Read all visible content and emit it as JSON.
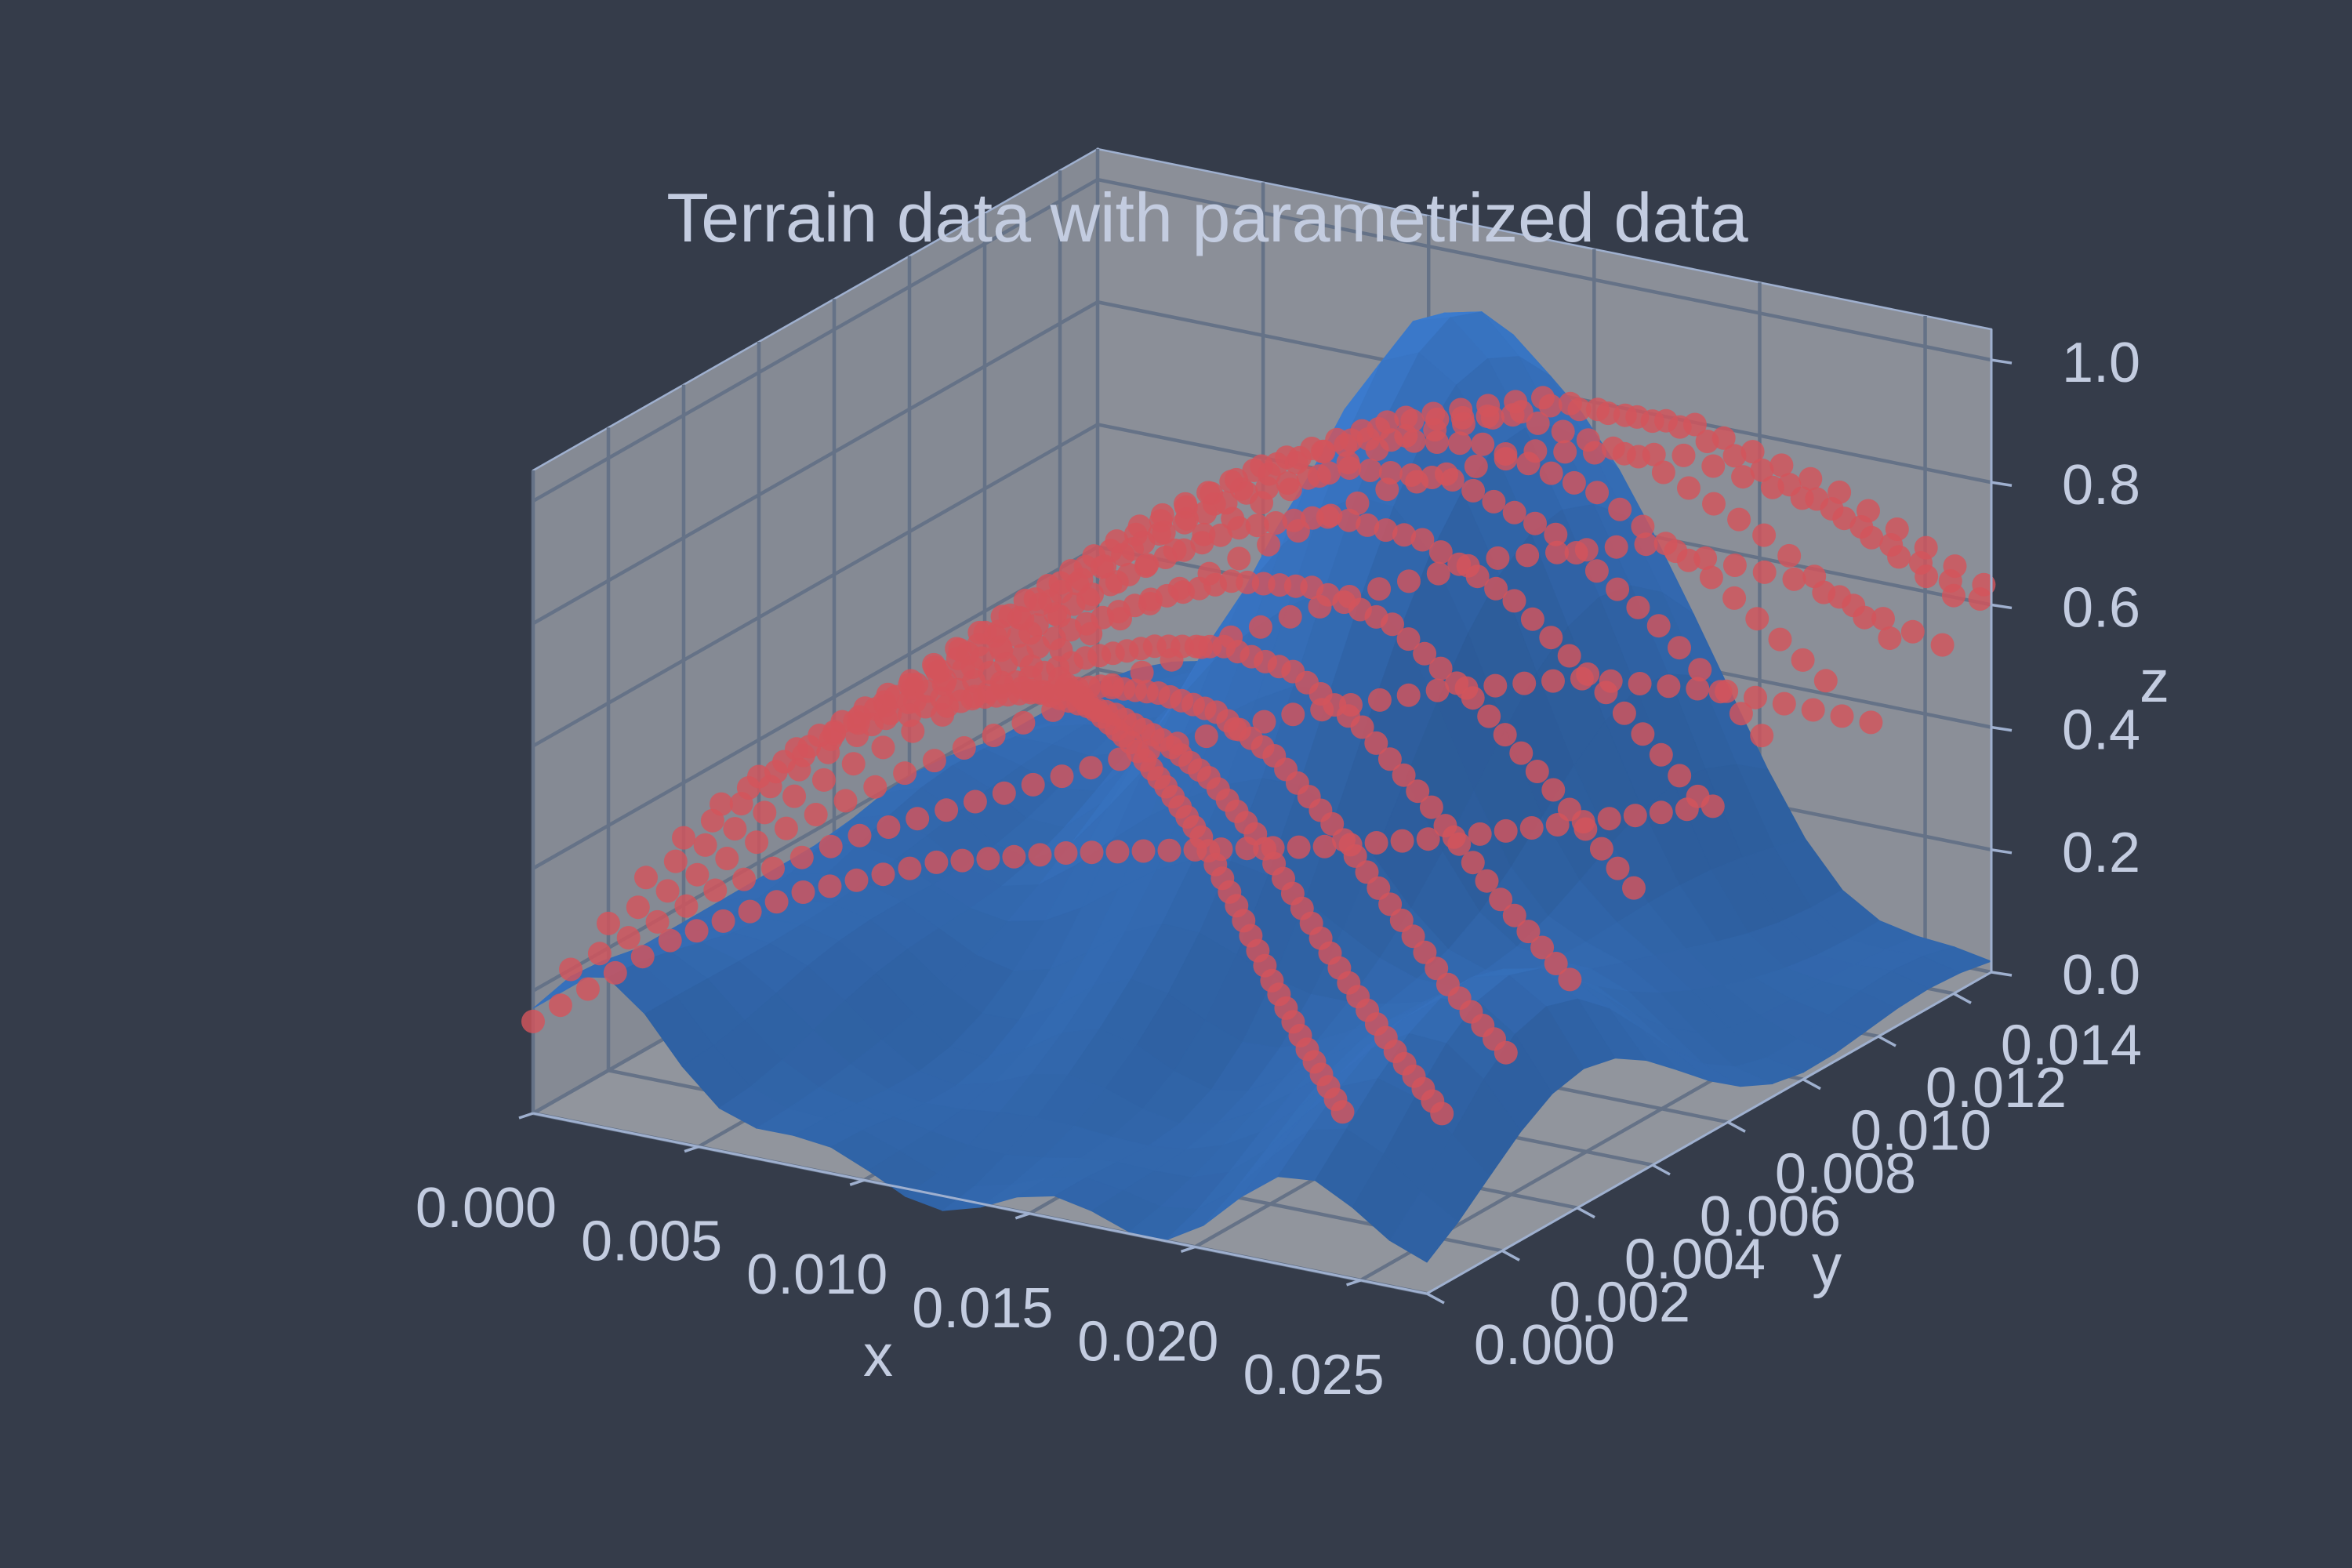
{
  "chart_data": {
    "type": "surface3d+scatter3d",
    "title": "Terrain data with parametrized data",
    "xlabel": "x",
    "ylabel": "y",
    "zlabel": "z",
    "xlim": [
      0.0,
      0.027
    ],
    "ylim": [
      0.0,
      0.015
    ],
    "zlim": [
      0.0,
      1.05
    ],
    "x_ticks": [
      "0.000",
      "0.005",
      "0.010",
      "0.015",
      "0.020",
      "0.025"
    ],
    "y_ticks": [
      "0.000",
      "0.002",
      "0.004",
      "0.006",
      "0.008",
      "0.010",
      "0.012",
      "0.014"
    ],
    "z_ticks": [
      "0.0",
      "0.2",
      "0.4",
      "0.6",
      "0.8",
      "1.0"
    ],
    "grid": true,
    "colors": {
      "background": "#353c4a",
      "surface": "#3a78c9",
      "points": "#d3545c",
      "text": "#c3cce0",
      "grid": "#657287"
    },
    "surface": {
      "x_range": [
        0.0,
        0.027
      ],
      "y_range": [
        0.0,
        0.015
      ],
      "grid_size": [
        24,
        18
      ],
      "peak_value": 1.0,
      "peak_location": [
        0.0135,
        0.0125
      ]
    },
    "series": [
      {
        "points": [
          [
            0.0,
            0.0,
            0.15
          ],
          [
            0.003,
            0.001,
            0.28
          ],
          [
            0.006,
            0.0019,
            0.36
          ],
          [
            0.009,
            0.0028,
            0.41
          ],
          [
            0.012,
            0.0036,
            0.43
          ],
          [
            0.015,
            0.0044,
            0.44
          ],
          [
            0.018,
            0.0052,
            0.45
          ],
          [
            0.021,
            0.006,
            0.47
          ],
          [
            0.024,
            0.0068,
            0.5
          ],
          [
            0.027,
            0.0076,
            0.53
          ]
        ]
      },
      {
        "points": [
          [
            0.0,
            0.001,
            0.2
          ],
          [
            0.003,
            0.0022,
            0.32
          ],
          [
            0.006,
            0.0034,
            0.4
          ],
          [
            0.009,
            0.0046,
            0.46
          ],
          [
            0.012,
            0.0058,
            0.52
          ],
          [
            0.015,
            0.007,
            0.57
          ],
          [
            0.018,
            0.0082,
            0.6
          ],
          [
            0.021,
            0.0094,
            0.61
          ],
          [
            0.024,
            0.0106,
            0.58
          ],
          [
            0.027,
            0.0118,
            0.52
          ]
        ]
      },
      {
        "points": [
          [
            0.0,
            0.002,
            0.24
          ],
          [
            0.003,
            0.0033,
            0.36
          ],
          [
            0.006,
            0.0046,
            0.46
          ],
          [
            0.009,
            0.0059,
            0.55
          ],
          [
            0.012,
            0.0072,
            0.64
          ],
          [
            0.015,
            0.0085,
            0.71
          ],
          [
            0.018,
            0.0098,
            0.76
          ],
          [
            0.021,
            0.0111,
            0.77
          ],
          [
            0.024,
            0.0124,
            0.7
          ],
          [
            0.027,
            0.0137,
            0.58
          ]
        ]
      },
      {
        "points": [
          [
            0.0,
            0.003,
            0.28
          ],
          [
            0.003,
            0.0043,
            0.4
          ],
          [
            0.006,
            0.0056,
            0.52
          ],
          [
            0.009,
            0.0069,
            0.64
          ],
          [
            0.012,
            0.0082,
            0.75
          ],
          [
            0.015,
            0.0095,
            0.85
          ],
          [
            0.018,
            0.0108,
            0.9
          ],
          [
            0.021,
            0.0121,
            0.88
          ],
          [
            0.024,
            0.0134,
            0.78
          ],
          [
            0.027,
            0.0147,
            0.62
          ]
        ]
      },
      {
        "points": [
          [
            0.0,
            0.004,
            0.31
          ],
          [
            0.003,
            0.0052,
            0.44
          ],
          [
            0.006,
            0.0064,
            0.57
          ],
          [
            0.009,
            0.0076,
            0.7
          ],
          [
            0.012,
            0.0088,
            0.82
          ],
          [
            0.015,
            0.01,
            0.92
          ],
          [
            0.018,
            0.0112,
            0.96
          ],
          [
            0.021,
            0.0124,
            0.92
          ],
          [
            0.024,
            0.0136,
            0.8
          ],
          [
            0.027,
            0.0148,
            0.64
          ]
        ]
      },
      {
        "points": [
          [
            0.0,
            0.005,
            0.33
          ],
          [
            0.003,
            0.006,
            0.46
          ],
          [
            0.006,
            0.007,
            0.6
          ],
          [
            0.009,
            0.008,
            0.74
          ],
          [
            0.012,
            0.009,
            0.86
          ],
          [
            0.015,
            0.01,
            0.95
          ],
          [
            0.018,
            0.011,
            0.98
          ],
          [
            0.021,
            0.012,
            0.93
          ],
          [
            0.024,
            0.013,
            0.81
          ],
          [
            0.027,
            0.014,
            0.65
          ]
        ]
      },
      {
        "points": [
          [
            0.0,
            0.006,
            0.34
          ],
          [
            0.003,
            0.0067,
            0.47
          ],
          [
            0.006,
            0.0074,
            0.62
          ],
          [
            0.009,
            0.0081,
            0.76
          ],
          [
            0.012,
            0.0088,
            0.88
          ],
          [
            0.015,
            0.0095,
            0.96
          ],
          [
            0.018,
            0.0102,
            0.98
          ],
          [
            0.021,
            0.0109,
            0.92
          ],
          [
            0.024,
            0.0116,
            0.8
          ],
          [
            0.027,
            0.0123,
            0.64
          ]
        ]
      },
      {
        "points": [
          [
            0.0,
            0.007,
            0.35
          ],
          [
            0.003,
            0.0074,
            0.48
          ],
          [
            0.006,
            0.0078,
            0.63
          ],
          [
            0.009,
            0.0082,
            0.77
          ],
          [
            0.012,
            0.0086,
            0.88
          ],
          [
            0.015,
            0.009,
            0.95
          ],
          [
            0.018,
            0.0094,
            0.96
          ],
          [
            0.021,
            0.0098,
            0.9
          ],
          [
            0.024,
            0.0102,
            0.78
          ],
          [
            0.027,
            0.0106,
            0.63
          ]
        ]
      },
      {
        "points": [
          [
            0.0,
            0.008,
            0.34
          ],
          [
            0.003,
            0.0081,
            0.47
          ],
          [
            0.006,
            0.0082,
            0.61
          ],
          [
            0.009,
            0.0083,
            0.74
          ],
          [
            0.012,
            0.0084,
            0.85
          ],
          [
            0.015,
            0.0085,
            0.92
          ],
          [
            0.018,
            0.0086,
            0.93
          ],
          [
            0.021,
            0.0087,
            0.87
          ],
          [
            0.024,
            0.0088,
            0.75
          ],
          [
            0.027,
            0.0089,
            0.6
          ]
        ]
      },
      {
        "points": [
          [
            0.0,
            0.009,
            0.32
          ],
          [
            0.003,
            0.0088,
            0.45
          ],
          [
            0.006,
            0.0086,
            0.58
          ],
          [
            0.009,
            0.0084,
            0.7
          ],
          [
            0.012,
            0.0082,
            0.8
          ],
          [
            0.015,
            0.008,
            0.86
          ],
          [
            0.018,
            0.0078,
            0.86
          ],
          [
            0.021,
            0.0076,
            0.8
          ],
          [
            0.024,
            0.0074,
            0.69
          ],
          [
            0.027,
            0.0072,
            0.56
          ]
        ]
      },
      {
        "points": [
          [
            0.0,
            0.01,
            0.3
          ],
          [
            0.003,
            0.0095,
            0.42
          ],
          [
            0.006,
            0.009,
            0.54
          ],
          [
            0.009,
            0.0085,
            0.64
          ],
          [
            0.012,
            0.008,
            0.72
          ],
          [
            0.015,
            0.0075,
            0.76
          ],
          [
            0.018,
            0.007,
            0.75
          ],
          [
            0.021,
            0.0065,
            0.68
          ],
          [
            0.024,
            0.006,
            0.58
          ],
          [
            0.027,
            0.0055,
            0.47
          ]
        ]
      },
      {
        "points": [
          [
            0.0,
            0.011,
            0.28
          ],
          [
            0.003,
            0.0102,
            0.38
          ],
          [
            0.006,
            0.0094,
            0.48
          ],
          [
            0.009,
            0.0086,
            0.56
          ],
          [
            0.012,
            0.0078,
            0.62
          ],
          [
            0.015,
            0.007,
            0.64
          ],
          [
            0.018,
            0.0062,
            0.61
          ],
          [
            0.021,
            0.0054,
            0.54
          ],
          [
            0.024,
            0.0046,
            0.45
          ],
          [
            0.027,
            0.0038,
            0.38
          ]
        ]
      },
      {
        "points": [
          [
            0.0,
            0.012,
            0.26
          ],
          [
            0.003,
            0.0109,
            0.34
          ],
          [
            0.006,
            0.0098,
            0.42
          ],
          [
            0.009,
            0.0087,
            0.48
          ],
          [
            0.012,
            0.0076,
            0.52
          ],
          [
            0.015,
            0.0065,
            0.52
          ],
          [
            0.018,
            0.0054,
            0.48
          ],
          [
            0.021,
            0.0043,
            0.42
          ],
          [
            0.024,
            0.0032,
            0.36
          ],
          [
            0.027,
            0.0021,
            0.32
          ]
        ]
      },
      {
        "points": [
          [
            0.0,
            0.013,
            0.24
          ],
          [
            0.003,
            0.0116,
            0.3
          ],
          [
            0.006,
            0.0102,
            0.36
          ],
          [
            0.009,
            0.0088,
            0.4
          ],
          [
            0.012,
            0.0074,
            0.42
          ],
          [
            0.015,
            0.006,
            0.41
          ],
          [
            0.018,
            0.0046,
            0.37
          ],
          [
            0.021,
            0.0032,
            0.33
          ],
          [
            0.024,
            0.0018,
            0.3
          ],
          [
            0.027,
            0.0004,
            0.28
          ]
        ]
      },
      {
        "points": [
          [
            0.0,
            0.014,
            0.22
          ],
          [
            0.003,
            0.0123,
            0.26
          ],
          [
            0.006,
            0.0106,
            0.3
          ],
          [
            0.009,
            0.0089,
            0.32
          ],
          [
            0.012,
            0.0072,
            0.33
          ],
          [
            0.015,
            0.0055,
            0.31
          ],
          [
            0.018,
            0.0038,
            0.28
          ],
          [
            0.021,
            0.0021,
            0.26
          ],
          [
            0.024,
            0.0004,
            0.25
          ]
        ]
      }
    ]
  }
}
